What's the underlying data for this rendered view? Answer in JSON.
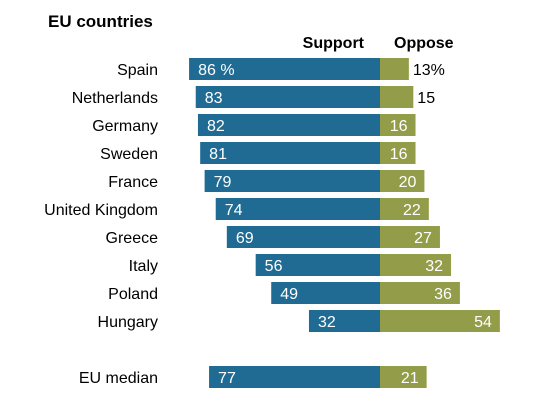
{
  "chart_data": {
    "type": "bar",
    "title": "EU countries",
    "series": [
      {
        "name": "Support",
        "color": "#1f6b94"
      },
      {
        "name": "Oppose",
        "color": "#939c48"
      }
    ],
    "rows": [
      {
        "category": "Spain",
        "support": 86,
        "oppose": 13,
        "support_label": "86 %",
        "oppose_label": "13%"
      },
      {
        "category": "Netherlands",
        "support": 83,
        "oppose": 15,
        "support_label": "83",
        "oppose_label": "15"
      },
      {
        "category": "Germany",
        "support": 82,
        "oppose": 16,
        "support_label": "82",
        "oppose_label": "16"
      },
      {
        "category": "Sweden",
        "support": 81,
        "oppose": 16,
        "support_label": "81",
        "oppose_label": "16"
      },
      {
        "category": "France",
        "support": 79,
        "oppose": 20,
        "support_label": "79",
        "oppose_label": "20"
      },
      {
        "category": "United Kingdom",
        "support": 74,
        "oppose": 22,
        "support_label": "74",
        "oppose_label": "22"
      },
      {
        "category": "Greece",
        "support": 69,
        "oppose": 27,
        "support_label": "69",
        "oppose_label": "27"
      },
      {
        "category": "Italy",
        "support": 56,
        "oppose": 32,
        "support_label": "56",
        "oppose_label": "32"
      },
      {
        "category": "Poland",
        "support": 49,
        "oppose": 36,
        "support_label": "49",
        "oppose_label": "36"
      },
      {
        "category": "Hungary",
        "support": 32,
        "oppose": 54,
        "support_label": "32",
        "oppose_label": "54"
      }
    ],
    "summary": {
      "category": "EU median",
      "support": 77,
      "oppose": 21,
      "support_label": "77",
      "oppose_label": "21"
    }
  }
}
